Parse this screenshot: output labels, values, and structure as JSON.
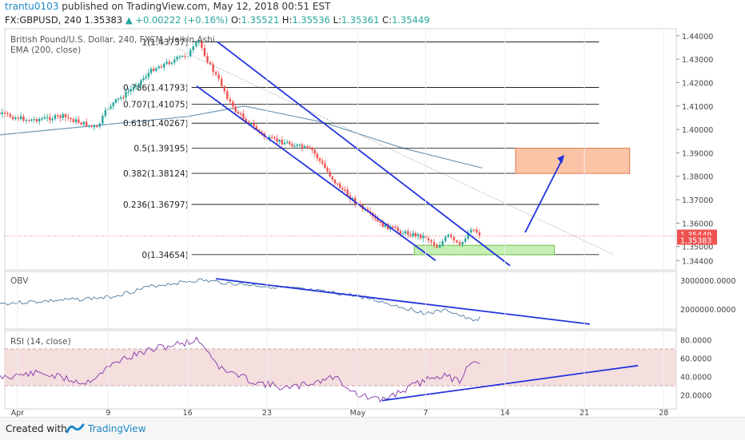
{
  "header": {
    "user": "trantu0103",
    "published": " published on TradingView.com, May 12, 2018 00:51 EST",
    "symbol_line": [
      {
        "t": "FX:GBPUSD, 240  1.35383 ",
        "c": "#222"
      },
      {
        "t": "▲ +0.00222 (+0.16%)",
        "c": "#26a69a"
      },
      {
        "t": "  O:",
        "c": "#222"
      },
      {
        "t": "1.35521",
        "c": "#26a69a"
      },
      {
        "t": " H:",
        "c": "#222"
      },
      {
        "t": "1.35536",
        "c": "#26a69a"
      },
      {
        "t": " L:",
        "c": "#222"
      },
      {
        "t": "1.35361",
        "c": "#26a69a"
      },
      {
        "t": " C:",
        "c": "#222"
      },
      {
        "t": "1.35449",
        "c": "#26a69a"
      }
    ]
  },
  "main": {
    "legend_title": "British Pound/U.S. Dollar, 240, FXCM, Heikin Ashi",
    "ema_label": "EMA (200, close)"
  },
  "obv": {
    "label": "OBV"
  },
  "rsi": {
    "label": "RSI (14, close)"
  },
  "footer": {
    "created": "Created with",
    "brand": "TradingView"
  },
  "colors": {
    "up": "#26a69a",
    "down": "#ef5350",
    "ema": "#6f98b8",
    "drawing": "#2233dd",
    "fib": "#222222",
    "target_box": "#fbc4a6",
    "support_box": "#c6f0b4",
    "rsi_band": "#f4dede",
    "rsi_line": "#8e44ad",
    "obv_line": "#5e86a8"
  },
  "chart_data": {
    "type": "candlestick",
    "chart_style": "Heikin Ashi",
    "symbol": "FX:GBPUSD",
    "interval": "240",
    "price_axis_ticks": [
      "1.44000",
      "1.43000",
      "1.42000",
      "1.41000",
      "1.40000",
      "1.39000",
      "1.38000",
      "1.37000",
      "1.36000",
      "1.35000",
      "1.34400"
    ],
    "price_ylim": [
      1.34,
      1.443
    ],
    "time_axis_ticks": [
      "Apr",
      "9",
      "16",
      "23",
      "May",
      "7",
      "14",
      "21",
      "28"
    ],
    "current_price_labels": [
      {
        "value": "1.35449",
        "kind": "close"
      },
      {
        "value": "1.35383",
        "kind": "last"
      }
    ],
    "fibonacci": [
      {
        "level": "1",
        "price": 1.43737,
        "label": "1(1.43737)"
      },
      {
        "level": "0.786",
        "price": 1.41793,
        "label": "0.786(1.41793)"
      },
      {
        "level": "0.707",
        "price": 1.41075,
        "label": "0.707(1.41075)"
      },
      {
        "level": "0.618",
        "price": 1.40267,
        "label": "0.618(1.40267)"
      },
      {
        "level": "0.5",
        "price": 1.39195,
        "label": "0.5(1.39195)"
      },
      {
        "level": "0.382",
        "price": 1.38124,
        "label": "0.382(1.38124)"
      },
      {
        "level": "0.236",
        "price": 1.36797,
        "label": "0.236(1.36797)"
      },
      {
        "level": "0",
        "price": 1.34654,
        "label": "0(1.34654)"
      }
    ],
    "price_path": [
      {
        "x": "Mar 29",
        "price": 1.408
      },
      {
        "x": "Apr 2",
        "price": 1.404
      },
      {
        "x": "Apr 5",
        "price": 1.4055
      },
      {
        "x": "Apr 8",
        "price": 1.4005
      },
      {
        "x": "Apr 9",
        "price": 1.4095
      },
      {
        "x": "Apr 11",
        "price": 1.417
      },
      {
        "x": "Apr 13",
        "price": 1.426
      },
      {
        "x": "Apr 16",
        "price": 1.432
      },
      {
        "x": "Apr 17",
        "price": 1.4374
      },
      {
        "x": "Apr 18",
        "price": 1.427
      },
      {
        "x": "Apr 19",
        "price": 1.419
      },
      {
        "x": "Apr 20",
        "price": 1.409
      },
      {
        "x": "Apr 23",
        "price": 1.396
      },
      {
        "x": "Apr 25",
        "price": 1.394
      },
      {
        "x": "Apr 27",
        "price": 1.391
      },
      {
        "x": "Apr 29",
        "price": 1.3775
      },
      {
        "x": "May 1",
        "price": 1.368
      },
      {
        "x": "May 3",
        "price": 1.3595
      },
      {
        "x": "May 5",
        "price": 1.356
      },
      {
        "x": "May 7",
        "price": 1.354
      },
      {
        "x": "May 8",
        "price": 1.35
      },
      {
        "x": "May 9",
        "price": 1.3545
      },
      {
        "x": "May 10",
        "price": 1.35
      },
      {
        "x": "May 11",
        "price": 1.358
      },
      {
        "x": "May 12",
        "price": 1.3545
      }
    ],
    "ema200_path": [
      {
        "x": "Mar 29",
        "price": 1.397
      },
      {
        "x": "Apr 16",
        "price": 1.4055
      },
      {
        "x": "Apr 21",
        "price": 1.41
      },
      {
        "x": "Apr 28",
        "price": 1.403
      },
      {
        "x": "May 5",
        "price": 1.392
      },
      {
        "x": "May 12",
        "price": 1.3835
      }
    ],
    "obv_axis_ticks": [
      "3000000.0000",
      "2000000.0000"
    ],
    "obv_path": [
      {
        "x": "Mar 29",
        "value": 2150000
      },
      {
        "x": "Apr 5",
        "value": 2300000
      },
      {
        "x": "Apr 9",
        "value": 2400000
      },
      {
        "x": "Apr 13",
        "value": 2800000
      },
      {
        "x": "Apr 17",
        "value": 3000000
      },
      {
        "x": "Apr 20",
        "value": 2880000
      },
      {
        "x": "Apr 25",
        "value": 2720000
      },
      {
        "x": "May 1",
        "value": 2460000
      },
      {
        "x": "May 7",
        "value": 1850000
      },
      {
        "x": "May 9",
        "value": 1950000
      },
      {
        "x": "May 11",
        "value": 1600000
      },
      {
        "x": "May 12",
        "value": 1700000
      }
    ],
    "rsi_axis_ticks": [
      "80.0000",
      "60.0000",
      "40.0000",
      "20.0000"
    ],
    "rsi_bands": [
      30,
      70
    ],
    "rsi_path": [
      {
        "x": "Mar 29",
        "value": 38
      },
      {
        "x": "Apr 3",
        "value": 44
      },
      {
        "x": "Apr 7",
        "value": 33
      },
      {
        "x": "Apr 10",
        "value": 58
      },
      {
        "x": "Apr 13",
        "value": 70
      },
      {
        "x": "Apr 17",
        "value": 80
      },
      {
        "x": "Apr 19",
        "value": 48
      },
      {
        "x": "Apr 22",
        "value": 34
      },
      {
        "x": "Apr 25",
        "value": 27
      },
      {
        "x": "Apr 29",
        "value": 40
      },
      {
        "x": "May 1",
        "value": 20
      },
      {
        "x": "May 3",
        "value": 14
      },
      {
        "x": "May 5",
        "value": 25
      },
      {
        "x": "May 8",
        "value": 42
      },
      {
        "x": "May 10",
        "value": 36
      },
      {
        "x": "May 11",
        "value": 58
      },
      {
        "x": "May 12",
        "value": 50
      }
    ]
  }
}
